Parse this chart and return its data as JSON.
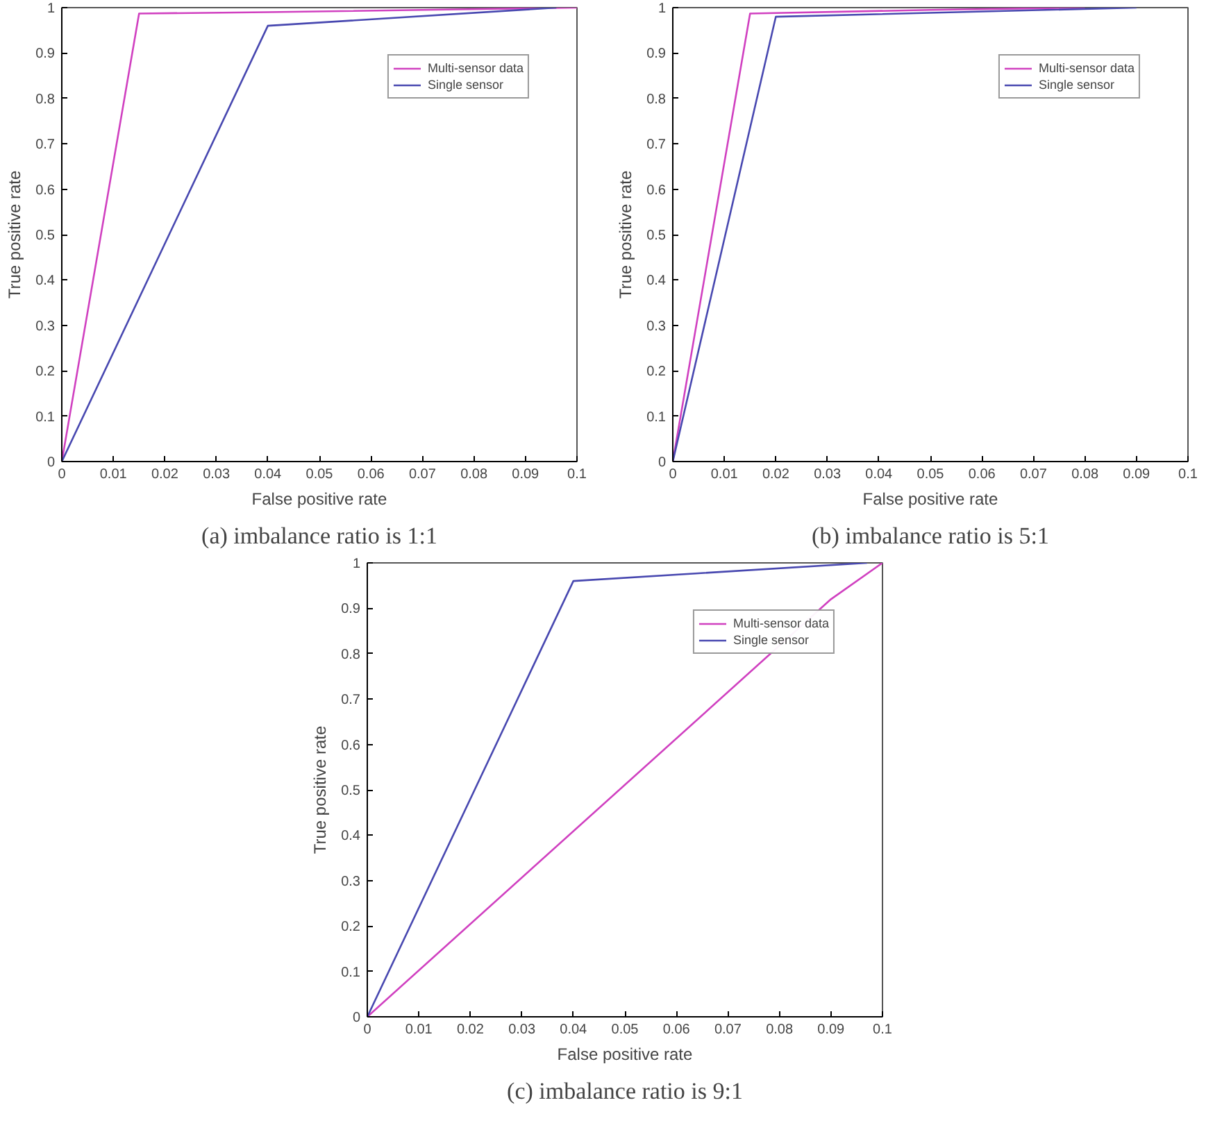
{
  "chart_data": [
    {
      "type": "line",
      "title": "(a) imbalance ratio is 1:1",
      "xlabel": "False positive rate",
      "ylabel": "True positive rate",
      "xlim": [
        0,
        0.1
      ],
      "ylim": [
        0,
        1
      ],
      "xticks": [
        0,
        0.01,
        0.02,
        0.03,
        0.04,
        0.05,
        0.06,
        0.07,
        0.08,
        0.09,
        0.1
      ],
      "yticks": [
        0,
        0.1,
        0.2,
        0.3,
        0.4,
        0.5,
        0.6,
        0.7,
        0.8,
        0.9,
        1
      ],
      "grid": false,
      "legend": "top right",
      "line_style": "solid",
      "series": [
        {
          "name": "Multi-sensor data",
          "color": "#d040c0",
          "x": [
            0,
            0.015,
            0.04,
            0.1
          ],
          "values": [
            0,
            0.987,
            0.99,
            1
          ]
        },
        {
          "name": "Single sensor",
          "color": "#4848b0",
          "x": [
            0,
            0.04,
            0.096
          ],
          "values": [
            0,
            0.96,
            1
          ]
        }
      ]
    },
    {
      "type": "line",
      "title": "(b) imbalance ratio is 5:1",
      "xlabel": "False positive rate",
      "ylabel": "True positive rate",
      "xlim": [
        0,
        0.1
      ],
      "ylim": [
        0,
        1
      ],
      "xticks": [
        0,
        0.01,
        0.02,
        0.03,
        0.04,
        0.05,
        0.06,
        0.07,
        0.08,
        0.09,
        0.1
      ],
      "yticks": [
        0,
        0.1,
        0.2,
        0.3,
        0.4,
        0.5,
        0.6,
        0.7,
        0.8,
        0.9,
        1
      ],
      "grid": false,
      "legend": "top right",
      "line_style": "solid",
      "series": [
        {
          "name": "Multi-sensor data",
          "color": "#d040c0",
          "x": [
            0,
            0.015,
            0.05,
            0.08
          ],
          "values": [
            0,
            0.987,
            0.995,
            1
          ]
        },
        {
          "name": "Single sensor",
          "color": "#4848b0",
          "x": [
            0,
            0.02,
            0.09
          ],
          "values": [
            0,
            0.98,
            1
          ]
        }
      ]
    },
    {
      "type": "line",
      "title": "(c) imbalance ratio is 9:1",
      "xlabel": "False positive rate",
      "ylabel": "True positive rate",
      "xlim": [
        0,
        0.1
      ],
      "ylim": [
        0,
        1
      ],
      "xticks": [
        0,
        0.01,
        0.02,
        0.03,
        0.04,
        0.05,
        0.06,
        0.07,
        0.08,
        0.09,
        0.1
      ],
      "yticks": [
        0,
        0.1,
        0.2,
        0.3,
        0.4,
        0.5,
        0.6,
        0.7,
        0.8,
        0.9,
        1
      ],
      "grid": false,
      "legend": "top right",
      "line_style": "solid",
      "series": [
        {
          "name": "Multi-sensor data",
          "color": "#d040c0",
          "x": [
            0,
            0.09,
            0.1
          ],
          "values": [
            0,
            0.92,
            1
          ]
        },
        {
          "name": "Single sensor",
          "color": "#4848b0",
          "x": [
            0,
            0.04,
            0.097
          ],
          "values": [
            0,
            0.96,
            1
          ]
        }
      ]
    }
  ]
}
